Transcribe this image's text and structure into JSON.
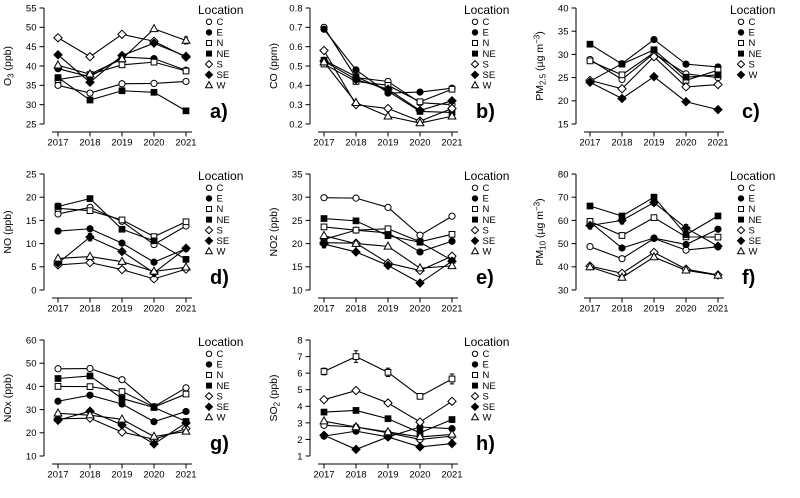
{
  "figure": {
    "background": "#ffffff",
    "line_color": "#000000",
    "legend_title": "Location",
    "x_tick_labels": [
      "2017",
      "2018",
      "2019",
      "2020",
      "2021"
    ]
  },
  "chart_data": [
    {
      "id": "a",
      "type": "line",
      "panel_label": "a)",
      "title": "",
      "xlabel": "",
      "ylabel": "O3 (ppb)",
      "ylabel_rich": [
        [
          "O",
          0
        ],
        [
          "3",
          1
        ],
        [
          " (ppb)",
          0
        ]
      ],
      "x": [
        2017,
        2018,
        2019,
        2020,
        2021
      ],
      "ylim": [
        25,
        55
      ],
      "yticks": [
        25,
        30,
        35,
        40,
        45,
        50,
        55
      ],
      "ytick_labels": [
        "25",
        "30",
        "35",
        "40",
        "45",
        "50",
        "55"
      ],
      "legend_title": "Location",
      "legend_position": "right",
      "grid": false,
      "series": [
        {
          "name": "C",
          "marker": "circle-open",
          "values": [
            35.0,
            33.0,
            35.4,
            35.5,
            36.0
          ]
        },
        {
          "name": "E",
          "marker": "circle-filled",
          "values": [
            39.3,
            37.2,
            42.3,
            41.9,
            38.9
          ]
        },
        {
          "name": "N",
          "marker": "square-open",
          "values": [
            36.5,
            37.8,
            40.3,
            41.0,
            38.7
          ]
        },
        {
          "name": "NE",
          "marker": "square-filled",
          "values": [
            37.0,
            31.2,
            33.6,
            33.2,
            28.4
          ],
          "errors": [
            0.6,
            0,
            0.7,
            0,
            0
          ]
        },
        {
          "name": "S",
          "marker": "diamond-open",
          "values": [
            47.3,
            42.4,
            48.2,
            46.4,
            42.3
          ]
        },
        {
          "name": "SE",
          "marker": "diamond-filled",
          "values": [
            42.9,
            35.8,
            42.7,
            45.9,
            42.5
          ]
        },
        {
          "name": "W",
          "marker": "triangle-open",
          "values": [
            40.2,
            37.9,
            41.8,
            49.6,
            46.6
          ],
          "errors": [
            0,
            0,
            0,
            0,
            0.9
          ]
        }
      ]
    },
    {
      "id": "b",
      "type": "line",
      "panel_label": "b)",
      "title": "",
      "xlabel": "",
      "ylabel": "CO (ppm)",
      "ylabel_rich": [
        [
          "CO (ppm)",
          0
        ]
      ],
      "x": [
        2017,
        2018,
        2019,
        2020,
        2021
      ],
      "ylim": [
        0.2,
        0.8
      ],
      "yticks": [
        0.2,
        0.3,
        0.4,
        0.5,
        0.6,
        0.7,
        0.8
      ],
      "ytick_labels": [
        "0.2",
        "0.3",
        "0.4",
        "0.5",
        "0.6",
        "0.7",
        "0.8"
      ],
      "legend_title": "Location",
      "legend_position": "right",
      "grid": false,
      "series": [
        {
          "name": "C",
          "marker": "circle-open",
          "values": [
            0.7,
            0.44,
            0.42,
            0.31,
            0.3
          ]
        },
        {
          "name": "E",
          "marker": "circle-filled",
          "values": [
            0.69,
            0.48,
            0.36,
            0.365,
            0.385
          ]
        },
        {
          "name": "N",
          "marker": "square-open",
          "values": [
            0.51,
            0.42,
            0.4,
            0.315,
            0.38
          ]
        },
        {
          "name": "NE",
          "marker": "square-filled",
          "values": [
            0.53,
            0.445,
            0.37,
            0.265,
            0.26
          ]
        },
        {
          "name": "S",
          "marker": "diamond-open",
          "values": [
            0.58,
            0.3,
            0.28,
            0.215,
            0.28
          ]
        },
        {
          "name": "SE",
          "marker": "diamond-filled",
          "values": [
            0.525,
            0.43,
            0.38,
            0.27,
            0.32
          ]
        },
        {
          "name": "W",
          "marker": "triangle-open",
          "values": [
            0.52,
            0.31,
            0.24,
            0.205,
            0.24
          ]
        }
      ]
    },
    {
      "id": "c",
      "type": "line",
      "panel_label": "c)",
      "title": "",
      "xlabel": "",
      "ylabel": "PM2.5 (µg m-3)",
      "ylabel_rich": [
        [
          "PM",
          0
        ],
        [
          "2.5",
          1
        ],
        [
          " (µg m",
          0
        ],
        [
          "−3",
          2
        ],
        [
          ")",
          0
        ]
      ],
      "x": [
        2017,
        2018,
        2019,
        2020,
        2021
      ],
      "ylim": [
        15,
        40
      ],
      "yticks": [
        15,
        20,
        25,
        30,
        35,
        40
      ],
      "ytick_labels": [
        "15",
        "20",
        "25",
        "30",
        "35",
        "40"
      ],
      "legend_title": "Location",
      "legend_position": "right",
      "grid": false,
      "series": [
        {
          "name": "C",
          "marker": "circle-open",
          "values": [
            28.9,
            24.6,
            30.2,
            25.8,
            25.0
          ]
        },
        {
          "name": "E",
          "marker": "circle-filled",
          "values": [
            24.2,
            28.0,
            33.2,
            27.9,
            27.3
          ]
        },
        {
          "name": "N",
          "marker": "square-open",
          "values": [
            28.6,
            25.6,
            30.4,
            24.4,
            26.6
          ]
        },
        {
          "name": "NE",
          "marker": "square-filled",
          "values": [
            32.2,
            27.9,
            31.0,
            25.1,
            25.6
          ]
        },
        {
          "name": "S",
          "marker": "diamond-open",
          "values": [
            24.4,
            22.6,
            29.5,
            23.0,
            23.5
          ]
        },
        {
          "name": "W",
          "marker": "diamond-filled",
          "values": [
            24.0,
            20.5,
            25.2,
            19.8,
            18.1
          ]
        }
      ]
    },
    {
      "id": "d",
      "type": "line",
      "panel_label": "d)",
      "title": "",
      "xlabel": "",
      "ylabel": "NO (ppb)",
      "ylabel_rich": [
        [
          "NO (ppb)",
          0
        ]
      ],
      "x": [
        2017,
        2018,
        2019,
        2020,
        2021
      ],
      "ylim": [
        0,
        25
      ],
      "yticks": [
        0,
        5,
        10,
        15,
        20,
        25
      ],
      "ytick_labels": [
        "0",
        "5",
        "10",
        "15",
        "20",
        "25"
      ],
      "legend_title": "Location",
      "legend_position": "right",
      "grid": false,
      "series": [
        {
          "name": "C",
          "marker": "circle-open",
          "values": [
            16.4,
            17.8,
            14.8,
            9.8,
            13.8
          ]
        },
        {
          "name": "E",
          "marker": "circle-filled",
          "values": [
            12.7,
            13.2,
            10.1,
            6.0,
            8.9
          ]
        },
        {
          "name": "N",
          "marker": "square-open",
          "values": [
            17.6,
            17.1,
            15.1,
            11.5,
            14.7
          ]
        },
        {
          "name": "NE",
          "marker": "square-filled",
          "values": [
            18.0,
            19.7,
            13.1,
            10.6,
            6.6
          ],
          "errors": [
            0.7,
            0.5,
            0.5,
            0,
            0
          ]
        },
        {
          "name": "S",
          "marker": "diamond-open",
          "values": [
            5.4,
            5.9,
            4.4,
            2.4,
            4.5
          ]
        },
        {
          "name": "SE",
          "marker": "diamond-filled",
          "values": [
            5.8,
            11.4,
            8.3,
            3.7,
            9.0
          ],
          "errors": [
            0,
            0.8,
            0.4,
            0,
            0.4
          ]
        },
        {
          "name": "W",
          "marker": "triangle-open",
          "values": [
            6.8,
            7.2,
            6.1,
            4.0,
            4.9
          ]
        }
      ]
    },
    {
      "id": "e",
      "type": "line",
      "panel_label": "e)",
      "title": "",
      "xlabel": "",
      "ylabel": "NO2 (ppb)",
      "ylabel_rich": [
        [
          "NO2 (ppb)",
          0
        ]
      ],
      "x": [
        2017,
        2018,
        2019,
        2020,
        2021
      ],
      "ylim": [
        10,
        35
      ],
      "yticks": [
        10,
        15,
        20,
        25,
        30,
        35
      ],
      "ytick_labels": [
        "10",
        "15",
        "20",
        "25",
        "30",
        "35"
      ],
      "legend_title": "Location",
      "legend_position": "right",
      "grid": false,
      "series": [
        {
          "name": "C",
          "marker": "circle-open",
          "values": [
            29.9,
            29.8,
            27.8,
            21.8,
            25.9
          ]
        },
        {
          "name": "E",
          "marker": "circle-filled",
          "values": [
            20.9,
            22.9,
            22.3,
            18.2,
            20.5
          ]
        },
        {
          "name": "N",
          "marker": "square-open",
          "values": [
            23.6,
            22.9,
            23.2,
            20.4,
            22.0
          ]
        },
        {
          "name": "NE",
          "marker": "square-filled",
          "values": [
            25.4,
            24.9,
            21.7,
            20.3,
            16.4
          ]
        },
        {
          "name": "S",
          "marker": "diamond-open",
          "values": [
            20.2,
            20.1,
            15.8,
            14.2,
            17.3
          ]
        },
        {
          "name": "SE",
          "marker": "diamond-filled",
          "values": [
            19.9,
            18.2,
            15.3,
            11.5,
            16.2
          ],
          "errors": [
            0.8,
            0,
            0,
            0,
            0
          ]
        },
        {
          "name": "W",
          "marker": "triangle-open",
          "values": [
            21.7,
            20.0,
            19.4,
            14.7,
            15.2
          ]
        }
      ]
    },
    {
      "id": "f",
      "type": "line",
      "panel_label": "f)",
      "title": "",
      "xlabel": "",
      "ylabel": "PM10 (µg m-3)",
      "ylabel_rich": [
        [
          "PM",
          0
        ],
        [
          "10",
          1
        ],
        [
          " (µg m",
          0
        ],
        [
          "−3",
          2
        ],
        [
          ")",
          0
        ]
      ],
      "x": [
        2017,
        2018,
        2019,
        2020,
        2021
      ],
      "ylim": [
        30,
        80
      ],
      "yticks": [
        30,
        40,
        50,
        60,
        70,
        80
      ],
      "ytick_labels": [
        "30",
        "40",
        "50",
        "60",
        "70",
        "80"
      ],
      "legend_title": "Location",
      "legend_position": "right",
      "grid": false,
      "series": [
        {
          "name": "C",
          "marker": "circle-open",
          "values": [
            48.7,
            43.5,
            52.2,
            47.2,
            48.6
          ]
        },
        {
          "name": "E",
          "marker": "circle-filled",
          "values": [
            59.3,
            48.1,
            52.4,
            49.6,
            56.2
          ]
        },
        {
          "name": "N",
          "marker": "square-open",
          "values": [
            59.6,
            53.5,
            61.2,
            52.9,
            52.8
          ]
        },
        {
          "name": "NE",
          "marker": "square-filled",
          "values": [
            66.2,
            61.9,
            70.0,
            53.8,
            61.9
          ],
          "errors": [
            0,
            0,
            1.2,
            0,
            0
          ]
        },
        {
          "name": "S",
          "marker": "diamond-open",
          "values": [
            40.3,
            37.2,
            46.2,
            39.0,
            36.5
          ]
        },
        {
          "name": "SE",
          "marker": "diamond-filled",
          "values": [
            57.8,
            60.0,
            67.7,
            56.7,
            48.9
          ],
          "errors": [
            1.5,
            1.5,
            1.2,
            1.5,
            0
          ]
        },
        {
          "name": "W",
          "marker": "triangle-open",
          "values": [
            39.9,
            35.4,
            44.2,
            38.5,
            36.3
          ]
        }
      ]
    },
    {
      "id": "g",
      "type": "line",
      "panel_label": "g)",
      "title": "",
      "xlabel": "",
      "ylabel": "NOx (ppb)",
      "ylabel_rich": [
        [
          "NOx (ppb)",
          0
        ]
      ],
      "x": [
        2017,
        2018,
        2019,
        2020,
        2021
      ],
      "ylim": [
        10,
        60
      ],
      "yticks": [
        10,
        20,
        30,
        40,
        50,
        60
      ],
      "ytick_labels": [
        "10",
        "20",
        "30",
        "40",
        "50",
        "60"
      ],
      "legend_title": "Location",
      "legend_position": "right",
      "grid": false,
      "series": [
        {
          "name": "C",
          "marker": "circle-open",
          "values": [
            47.6,
            47.7,
            42.9,
            31.3,
            39.4
          ]
        },
        {
          "name": "E",
          "marker": "circle-filled",
          "values": [
            33.6,
            36.2,
            32.4,
            24.8,
            29.2
          ]
        },
        {
          "name": "N",
          "marker": "square-open",
          "values": [
            40.0,
            39.9,
            37.8,
            31.1,
            36.7
          ]
        },
        {
          "name": "NE",
          "marker": "square-filled",
          "values": [
            43.4,
            44.5,
            34.8,
            30.9,
            24.9
          ]
        },
        {
          "name": "S",
          "marker": "diamond-open",
          "values": [
            26.0,
            26.3,
            20.3,
            17.2,
            21.8
          ]
        },
        {
          "name": "SE",
          "marker": "diamond-filled",
          "values": [
            25.4,
            29.3,
            23.4,
            15.2,
            24.3
          ]
        },
        {
          "name": "W",
          "marker": "triangle-open",
          "values": [
            28.4,
            27.6,
            25.8,
            18.4,
            20.6
          ]
        }
      ]
    },
    {
      "id": "h",
      "type": "line",
      "panel_label": "h)",
      "title": "",
      "xlabel": "",
      "ylabel": "SO2 (ppb)",
      "ylabel_rich": [
        [
          "SO",
          0
        ],
        [
          "2",
          1
        ],
        [
          " (ppb)",
          0
        ]
      ],
      "x": [
        2017,
        2018,
        2019,
        2020,
        2021
      ],
      "ylim": [
        1,
        8
      ],
      "yticks": [
        1,
        2,
        3,
        4,
        5,
        6,
        7,
        8
      ],
      "ytick_labels": [
        "1",
        "2",
        "3",
        "4",
        "5",
        "6",
        "7",
        "8"
      ],
      "legend_title": "Location",
      "legend_position": "right",
      "grid": false,
      "series": [
        {
          "name": "C",
          "marker": "circle-open",
          "values": [
            2.85,
            2.75,
            2.4,
            2.0,
            2.2
          ]
        },
        {
          "name": "E",
          "marker": "circle-filled",
          "values": [
            2.2,
            2.5,
            2.15,
            2.75,
            2.65
          ]
        },
        {
          "name": "N",
          "marker": "square-open",
          "values": [
            6.1,
            7.0,
            6.05,
            4.6,
            5.65
          ],
          "errors": [
            0.2,
            0.35,
            0.25,
            0.15,
            0.3
          ]
        },
        {
          "name": "NE",
          "marker": "square-filled",
          "values": [
            3.65,
            3.75,
            3.25,
            2.4,
            3.2
          ]
        },
        {
          "name": "S",
          "marker": "diamond-open",
          "values": [
            4.4,
            4.95,
            4.2,
            3.05,
            4.3
          ],
          "errors": [
            0,
            0.15,
            0,
            0,
            0.15
          ]
        },
        {
          "name": "SE",
          "marker": "diamond-filled",
          "values": [
            2.25,
            1.4,
            2.15,
            1.55,
            1.75
          ]
        },
        {
          "name": "W",
          "marker": "triangle-open",
          "values": [
            3.1,
            2.75,
            2.45,
            2.15,
            2.3
          ]
        }
      ]
    }
  ]
}
